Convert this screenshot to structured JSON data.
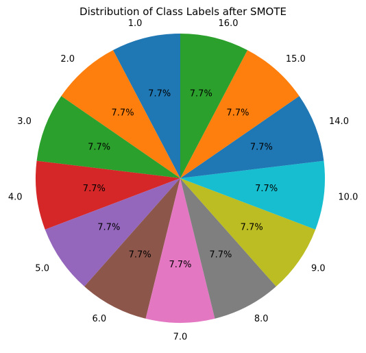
{
  "chart_data": {
    "type": "pie",
    "title": "Distribution of Class Labels after SMOTE",
    "start_angle_deg": 90,
    "direction": "counterclockwise",
    "slices": [
      {
        "label": "1.0",
        "value": 7.7,
        "pct_label": "7.7%",
        "color": "#1f77b4"
      },
      {
        "label": "2.0",
        "value": 7.7,
        "pct_label": "7.7%",
        "color": "#ff7f0e"
      },
      {
        "label": "3.0",
        "value": 7.7,
        "pct_label": "7.7%",
        "color": "#2ca02c"
      },
      {
        "label": "4.0",
        "value": 7.7,
        "pct_label": "7.7%",
        "color": "#d62728"
      },
      {
        "label": "5.0",
        "value": 7.7,
        "pct_label": "7.7%",
        "color": "#9467bd"
      },
      {
        "label": "6.0",
        "value": 7.7,
        "pct_label": "7.7%",
        "color": "#8c564b"
      },
      {
        "label": "7.0",
        "value": 7.7,
        "pct_label": "7.7%",
        "color": "#e377c2"
      },
      {
        "label": "8.0",
        "value": 7.7,
        "pct_label": "7.7%",
        "color": "#7f7f7f"
      },
      {
        "label": "9.0",
        "value": 7.7,
        "pct_label": "7.7%",
        "color": "#bcbd22"
      },
      {
        "label": "10.0",
        "value": 7.7,
        "pct_label": "7.7%",
        "color": "#17becf"
      },
      {
        "label": "14.0",
        "value": 7.7,
        "pct_label": "7.7%",
        "color": "#1f77b4"
      },
      {
        "label": "15.0",
        "value": 7.7,
        "pct_label": "7.7%",
        "color": "#ff7f0e"
      },
      {
        "label": "16.0",
        "value": 7.7,
        "pct_label": "7.7%",
        "color": "#2ca02c"
      }
    ]
  }
}
